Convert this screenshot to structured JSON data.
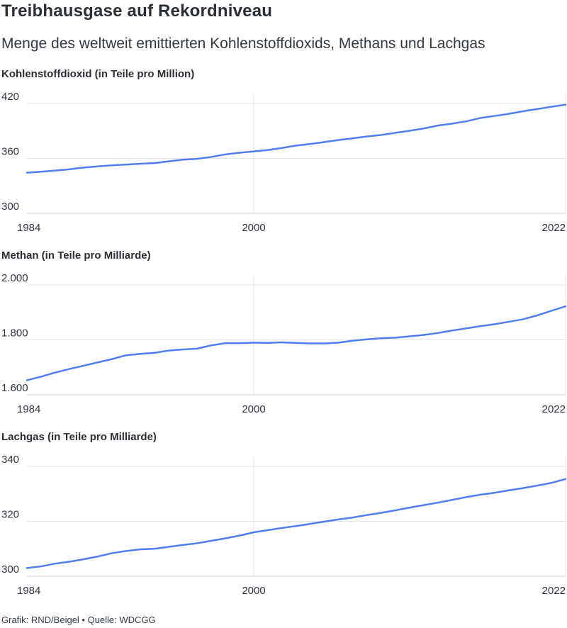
{
  "header": {
    "title": "Treibhausgase auf Rekordniveau",
    "subtitle": "Menge des weltweit emittierten Kohlenstoffdioxids, Methans und Lachgas"
  },
  "footer": {
    "text": "Grafik: RND/Beigel • Quelle: WDCGG"
  },
  "colors": {
    "line": "#4f7ef0",
    "grid": "#e1e4e8",
    "axis": "#c9ced4"
  },
  "chart_data": [
    {
      "type": "line",
      "title": "Kohlenstoffdioxid (in Teile pro Million)",
      "x": [
        1984,
        1985,
        1986,
        1987,
        1988,
        1989,
        1990,
        1991,
        1992,
        1993,
        1994,
        1995,
        1996,
        1997,
        1998,
        1999,
        2000,
        2001,
        2002,
        2003,
        2004,
        2005,
        2006,
        2007,
        2008,
        2009,
        2010,
        2011,
        2012,
        2013,
        2014,
        2015,
        2016,
        2017,
        2018,
        2019,
        2020,
        2021,
        2022
      ],
      "series": [
        {
          "values": [
            344.4,
            345.5,
            346.7,
            348.1,
            350.0,
            351.3,
            352.5,
            353.3,
            354.2,
            354.9,
            356.8,
            358.6,
            359.5,
            361.6,
            364.4,
            366.2,
            367.6,
            369.2,
            371.4,
            374.0,
            375.8,
            377.9,
            380.1,
            382.0,
            384.0,
            385.6,
            388.0,
            390.2,
            392.7,
            395.9,
            398.0,
            400.5,
            404.2,
            406.4,
            408.7,
            411.5,
            413.9,
            416.4,
            418.7
          ]
        }
      ],
      "xticks": [
        1984,
        2000,
        2022
      ],
      "yticks": [
        300,
        360,
        420
      ],
      "ytick_labels": [
        "300",
        "360",
        "420"
      ],
      "xlim": [
        1984,
        2022
      ],
      "ylim": [
        300,
        420
      ],
      "grid": true
    },
    {
      "type": "line",
      "title": "Methan (in Teile pro Milliarde)",
      "x": [
        1984,
        1985,
        1986,
        1987,
        1988,
        1989,
        1990,
        1991,
        1992,
        1993,
        1994,
        1995,
        1996,
        1997,
        1998,
        1999,
        2000,
        2001,
        2002,
        2003,
        2004,
        2005,
        2006,
        2007,
        2008,
        2009,
        2010,
        2011,
        2012,
        2013,
        2014,
        2015,
        2016,
        2017,
        2018,
        2019,
        2020,
        2021,
        2022
      ],
      "series": [
        {
          "values": [
            1653,
            1666,
            1681,
            1694,
            1706,
            1718,
            1730,
            1744,
            1749,
            1753,
            1761,
            1765,
            1768,
            1780,
            1788,
            1788,
            1790,
            1789,
            1791,
            1789,
            1787,
            1787,
            1790,
            1797,
            1802,
            1806,
            1808,
            1813,
            1818,
            1825,
            1834,
            1842,
            1850,
            1857,
            1866,
            1875,
            1889,
            1906,
            1922
          ]
        }
      ],
      "xticks": [
        1984,
        2000,
        2022
      ],
      "yticks": [
        1600,
        1800,
        2000
      ],
      "ytick_labels": [
        "1.600",
        "1.800",
        "2.000"
      ],
      "xlim": [
        1984,
        2022
      ],
      "ylim": [
        1600,
        2000
      ],
      "grid": true
    },
    {
      "type": "line",
      "title": "Lachgas (in Teile pro Milliarde)",
      "x": [
        1984,
        1985,
        1986,
        1987,
        1988,
        1989,
        1990,
        1991,
        1992,
        1993,
        1994,
        1995,
        1996,
        1997,
        1998,
        1999,
        2000,
        2001,
        2002,
        2003,
        2004,
        2005,
        2006,
        2007,
        2008,
        2009,
        2010,
        2011,
        2012,
        2013,
        2014,
        2015,
        2016,
        2017,
        2018,
        2019,
        2020,
        2021,
        2022
      ],
      "series": [
        {
          "values": [
            303.0,
            303.6,
            304.6,
            305.3,
            306.2,
            307.2,
            308.4,
            309.2,
            309.8,
            310.0,
            310.7,
            311.4,
            312.0,
            312.9,
            313.8,
            314.8,
            316.0,
            316.8,
            317.6,
            318.3,
            319.1,
            319.9,
            320.7,
            321.4,
            322.3,
            323.1,
            324.0,
            325.0,
            325.9,
            326.8,
            327.8,
            328.8,
            329.7,
            330.4,
            331.3,
            332.1,
            333.0,
            334.0,
            335.4
          ]
        }
      ],
      "xticks": [
        1984,
        2000,
        2022
      ],
      "yticks": [
        300,
        320,
        340
      ],
      "ytick_labels": [
        "300",
        "320",
        "340"
      ],
      "xlim": [
        1984,
        2022
      ],
      "ylim": [
        300,
        340
      ],
      "grid": true
    }
  ]
}
